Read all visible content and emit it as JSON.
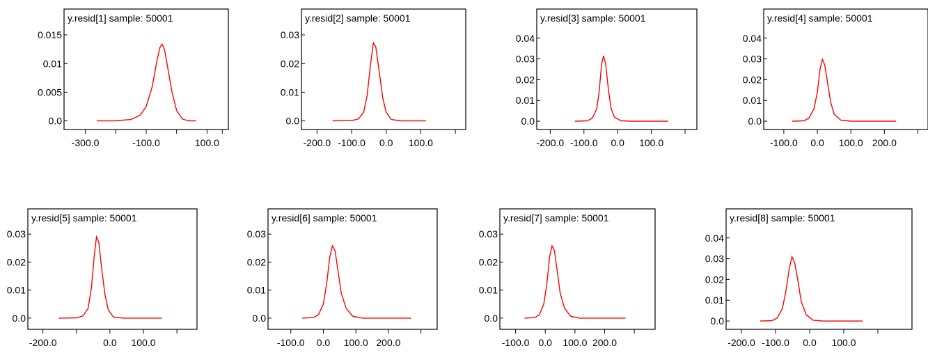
{
  "chart_data": [
    {
      "type": "line",
      "title": "y.resid[1] sample: 50001",
      "xlim": [
        -370,
        170
      ],
      "ylim": [
        -0.0015,
        0.0195
      ],
      "xticks": [
        -300,
        -200,
        -100,
        0,
        100,
        150
      ],
      "xtick_labels": [
        "-300.0",
        "",
        "-100.0",
        "",
        "100.0",
        ""
      ],
      "yticks": [
        0.0,
        0.005,
        0.01,
        0.015
      ],
      "ytick_labels": [
        "0.0",
        "0.005",
        "0.01",
        "0.015"
      ],
      "x": [
        -262,
        -200,
        -150,
        -120,
        -100,
        -80,
        -65,
        -55,
        -48,
        -40,
        -30,
        -15,
        0,
        20,
        40,
        64
      ],
      "y": [
        0.0,
        2e-05,
        0.00025,
        0.001,
        0.0025,
        0.006,
        0.0104,
        0.0128,
        0.0134,
        0.0125,
        0.0095,
        0.005,
        0.0018,
        0.0003,
        2e-05,
        0.0
      ]
    },
    {
      "type": "line",
      "title": "y.resid[2] sample: 50001",
      "xlim": [
        -245,
        230
      ],
      "ylim": [
        -0.003,
        0.039
      ],
      "xticks": [
        -200,
        -100,
        0,
        100,
        200
      ],
      "xtick_labels": [
        "-200.0",
        "-100.0",
        "0.0",
        "100.0",
        ""
      ],
      "yticks": [
        0.0,
        0.01,
        0.02,
        0.03
      ],
      "ytick_labels": [
        "0.0",
        "0.01",
        "0.02",
        "0.03"
      ],
      "x": [
        -155,
        -100,
        -80,
        -65,
        -55,
        -45,
        -37,
        -30,
        -20,
        -10,
        0,
        15,
        40,
        115
      ],
      "y": [
        0.0,
        0.0001,
        0.0007,
        0.003,
        0.009,
        0.02,
        0.0272,
        0.0258,
        0.017,
        0.008,
        0.003,
        0.0005,
        3e-05,
        0.0
      ]
    },
    {
      "type": "line",
      "title": "y.resid[3] sample: 50001",
      "xlim": [
        -240,
        235
      ],
      "ylim": [
        -0.004,
        0.054
      ],
      "xticks": [
        -200,
        -100,
        0,
        100,
        200
      ],
      "xtick_labels": [
        "-200.0",
        "-100.0",
        "0.0",
        "100.0",
        ""
      ],
      "yticks": [
        0.0,
        0.01,
        0.02,
        0.03,
        0.04
      ],
      "ytick_labels": [
        "0.0",
        "0.01",
        "0.02",
        "0.03",
        "0.04"
      ],
      "x": [
        -127,
        -90,
        -75,
        -62,
        -55,
        -48,
        -42,
        -36,
        -28,
        -20,
        -10,
        10,
        40,
        150
      ],
      "y": [
        0.0,
        0.0002,
        0.0015,
        0.006,
        0.014,
        0.027,
        0.0315,
        0.028,
        0.016,
        0.0065,
        0.002,
        0.0002,
        0.0,
        0.0
      ]
    },
    {
      "type": "line",
      "title": "y.resid[4] sample: 50001",
      "xlim": [
        -160,
        330
      ],
      "ylim": [
        -0.004,
        0.054
      ],
      "xticks": [
        -100,
        0,
        100,
        200,
        300
      ],
      "xtick_labels": [
        "-100.0",
        "0.0",
        "100.0",
        "200.0",
        ""
      ],
      "yticks": [
        0.0,
        0.01,
        0.02,
        0.03,
        0.04
      ],
      "ytick_labels": [
        "0.0",
        "0.01",
        "0.02",
        "0.03",
        "0.04"
      ],
      "x": [
        -75,
        -40,
        -25,
        -10,
        0,
        8,
        15,
        22,
        30,
        40,
        50,
        70,
        100,
        235
      ],
      "y": [
        0.0,
        0.0002,
        0.0015,
        0.006,
        0.014,
        0.025,
        0.0298,
        0.027,
        0.019,
        0.009,
        0.0035,
        0.0005,
        3e-05,
        0.0
      ]
    },
    {
      "type": "line",
      "title": "y.resid[5] sample: 50001",
      "xlim": [
        -245,
        260
      ],
      "ylim": [
        -0.004,
        0.039
      ],
      "xticks": [
        -200,
        -100,
        0,
        100,
        200
      ],
      "xtick_labels": [
        "-200.0",
        "",
        "0.0",
        "100.0",
        ""
      ],
      "yticks": [
        0.0,
        0.01,
        0.02,
        0.03
      ],
      "ytick_labels": [
        "0.0",
        "0.01",
        "0.02",
        "0.03"
      ],
      "x": [
        -153,
        -100,
        -80,
        -65,
        -55,
        -47,
        -40,
        -33,
        -25,
        -15,
        -5,
        10,
        40,
        155
      ],
      "y": [
        0.0,
        0.0001,
        0.0008,
        0.0035,
        0.011,
        0.022,
        0.029,
        0.027,
        0.018,
        0.0085,
        0.003,
        0.0004,
        0.0,
        0.0
      ]
    },
    {
      "type": "line",
      "title": "y.resid[6] sample: 50001",
      "xlim": [
        -170,
        350
      ],
      "ylim": [
        -0.004,
        0.039
      ],
      "xticks": [
        -100,
        0,
        100,
        200,
        300
      ],
      "xtick_labels": [
        "-100.0",
        "0.0",
        "100.0",
        "200.0",
        ""
      ],
      "yticks": [
        0.0,
        0.01,
        0.02,
        0.03
      ],
      "ytick_labels": [
        "0.0",
        "0.01",
        "0.02",
        "0.03"
      ],
      "x": [
        -65,
        -30,
        -15,
        0,
        10,
        20,
        28,
        36,
        45,
        55,
        70,
        90,
        120,
        270
      ],
      "y": [
        0.0,
        0.0002,
        0.0012,
        0.005,
        0.012,
        0.022,
        0.0258,
        0.024,
        0.017,
        0.009,
        0.0035,
        0.0007,
        0.0,
        0.0
      ]
    },
    {
      "type": "line",
      "title": "y.resid[7] sample: 50001",
      "xlim": [
        -153,
        370
      ],
      "ylim": [
        -0.004,
        0.039
      ],
      "xticks": [
        -100,
        0,
        100,
        200,
        300
      ],
      "xtick_labels": [
        "-100.0",
        "0.0",
        "100.0",
        "200.0",
        ""
      ],
      "yticks": [
        0.0,
        0.01,
        0.02,
        0.03
      ],
      "ytick_labels": [
        "0.0",
        "0.01",
        "0.02",
        "0.03"
      ],
      "x": [
        -70,
        -35,
        -20,
        -5,
        5,
        15,
        23,
        31,
        40,
        50,
        65,
        85,
        115,
        270
      ],
      "y": [
        0.0,
        0.0002,
        0.0012,
        0.005,
        0.012,
        0.022,
        0.0258,
        0.024,
        0.017,
        0.009,
        0.0035,
        0.0007,
        0.0,
        0.0
      ]
    },
    {
      "type": "line",
      "title": "y.resid[8] sample: 50001",
      "xlim": [
        -245,
        300
      ],
      "ylim": [
        -0.004,
        0.054
      ],
      "xticks": [
        -200,
        -100,
        0,
        100,
        200
      ],
      "xtick_labels": [
        "-200.0",
        "-100.0",
        "0.0",
        "100.0",
        ""
      ],
      "yticks": [
        0.0,
        0.01,
        0.02,
        0.03,
        0.04
      ],
      "ytick_labels": [
        "0.0",
        "0.01",
        "0.02",
        "0.03",
        "0.04"
      ],
      "x": [
        -145,
        -110,
        -95,
        -80,
        -70,
        -60,
        -52,
        -44,
        -35,
        -25,
        -10,
        10,
        40,
        155
      ],
      "y": [
        0.0,
        0.0002,
        0.0015,
        0.006,
        0.014,
        0.025,
        0.031,
        0.028,
        0.02,
        0.0095,
        0.003,
        0.0004,
        0.0,
        0.0
      ]
    }
  ],
  "colors": {
    "curve": "#ff0000",
    "frame": "#000000"
  }
}
